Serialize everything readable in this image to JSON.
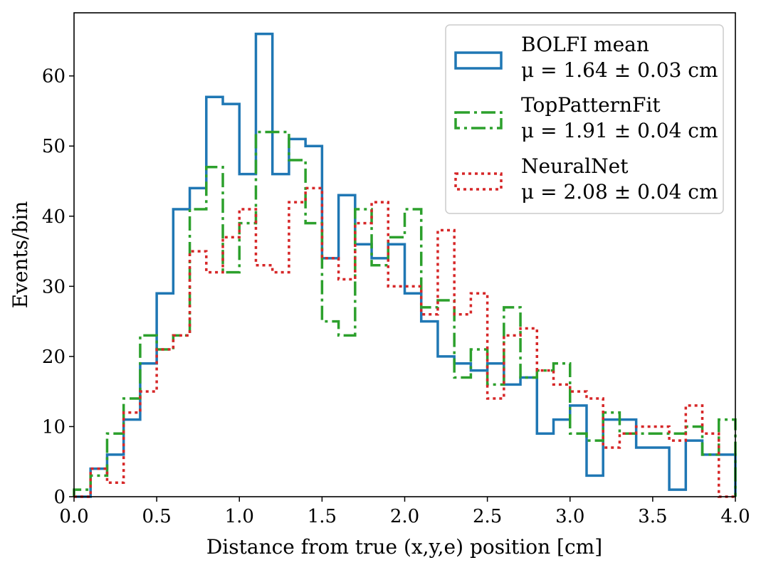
{
  "chart_data": {
    "type": "histogram",
    "title": "",
    "xlabel": "Distance from true (x,y,e) position [cm]",
    "ylabel": "Events/bin",
    "xlim": [
      0,
      4.0
    ],
    "ylim": [
      0,
      69
    ],
    "bin_width": 0.1,
    "x_ticks": [
      0.0,
      0.5,
      1.0,
      1.5,
      2.0,
      2.5,
      3.0,
      3.5,
      4.0
    ],
    "x_tick_labels": [
      "0.0",
      "0.5",
      "1.0",
      "1.5",
      "2.0",
      "2.5",
      "3.0",
      "3.5",
      "4.0"
    ],
    "y_ticks": [
      0,
      10,
      20,
      30,
      40,
      50,
      60
    ],
    "y_tick_labels": [
      "0",
      "10",
      "20",
      "30",
      "40",
      "50",
      "60"
    ],
    "legend_position": "top-right",
    "series": [
      {
        "name": "BOLFI mean",
        "stat": "μ = 1.64 ± 0.03 cm",
        "color": "#1f77b4",
        "dash": "",
        "values": [
          0,
          4,
          6,
          11,
          19,
          29,
          41,
          44,
          57,
          56,
          46,
          66,
          46,
          51,
          50,
          34,
          43,
          36,
          34,
          36,
          29,
          25,
          20,
          19,
          18,
          19,
          16,
          17,
          9,
          11,
          13,
          3,
          11,
          11,
          7,
          7,
          1,
          8,
          6,
          6
        ]
      },
      {
        "name": "TopPatternFit",
        "stat": "μ = 1.91 ± 0.04 cm",
        "color": "#2ca02c",
        "dash": "20,6,4,6",
        "values": [
          1,
          3,
          9,
          14,
          23,
          21,
          23,
          41,
          47,
          32,
          39,
          52,
          52,
          48,
          39,
          25,
          23,
          41,
          33,
          37,
          41,
          27,
          28,
          17,
          21,
          16,
          27,
          17,
          18,
          19,
          9,
          8,
          12,
          9,
          9,
          9,
          9,
          10,
          6,
          11
        ]
      },
      {
        "name": "NeuralNet",
        "stat": "μ = 2.08 ± 0.04 cm",
        "color": "#d62728",
        "dash": "4,5",
        "values": [
          0,
          4,
          2,
          12,
          15,
          21,
          23,
          35,
          32,
          37,
          41,
          33,
          32,
          42,
          44,
          34,
          31,
          39,
          42,
          30,
          30,
          26,
          38,
          26,
          29,
          14,
          23,
          24,
          18,
          16,
          15,
          14,
          7,
          9,
          10,
          10,
          8,
          13,
          9,
          0
        ]
      }
    ]
  }
}
